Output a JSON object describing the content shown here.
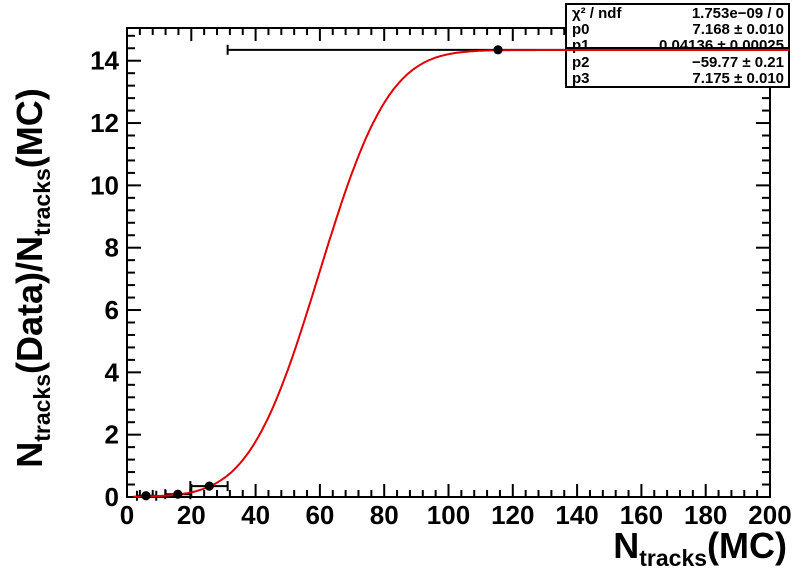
{
  "chart_data": {
    "type": "scatter",
    "title": "",
    "xlabel": "N_tracks(MC)",
    "ylabel": "N_tracks(Data)/N_tracks(MC)",
    "xlabel_segments": [
      {
        "text": "N",
        "sub": false
      },
      {
        "text": "tracks",
        "sub": true
      },
      {
        "text": "(MC)",
        "sub": false
      }
    ],
    "ylabel_segments": [
      {
        "text": "N",
        "sub": false
      },
      {
        "text": "tracks",
        "sub": true
      },
      {
        "text": "(Data)/N",
        "sub": false
      },
      {
        "text": "tracks",
        "sub": true
      },
      {
        "text": "(MC)",
        "sub": false
      }
    ],
    "xlim": [
      0,
      200
    ],
    "ylim": [
      0,
      15.05
    ],
    "x_major_ticks": [
      0,
      20,
      40,
      60,
      80,
      100,
      120,
      140,
      160,
      180,
      200
    ],
    "x_minor_step": 4,
    "y_major_ticks": [
      0,
      2,
      4,
      6,
      8,
      10,
      12,
      14
    ],
    "y_minor_step": 0.4,
    "grid": false,
    "legend": "none",
    "points": [
      {
        "x": 5.9,
        "y": 0.04,
        "xlow": 3.1,
        "xhigh": 9.1
      },
      {
        "x": 15.8,
        "y": 0.09,
        "xlow": 11.9,
        "xhigh": 19.7
      },
      {
        "x": 25.6,
        "y": 0.35,
        "xlow": 19.7,
        "xhigh": 31.3
      },
      {
        "x": 115.4,
        "y": 14.35,
        "xlow": 31.3,
        "xhigh": 200
      }
    ],
    "fit": {
      "model": "y = p3 + p0*erf(p1*(x+p2))",
      "params": {
        "p0": 7.168,
        "p1": 0.04136,
        "p2": -59.77,
        "p3": 7.175
      },
      "range": [
        2,
        206
      ],
      "color": "#e10000"
    },
    "marker_color": "#000000"
  },
  "stats_box": {
    "rows": [
      {
        "label": "χ² / ndf",
        "value": "1.753e−09 / 0"
      },
      {
        "label": "p0",
        "value": "7.168 ± 0.010"
      },
      {
        "label": "p1",
        "value": "0.04136 ± 0.00025"
      },
      {
        "label": "p2",
        "value": "−59.77 ± 0.21"
      },
      {
        "label": "p3",
        "value": "7.175 ± 0.010"
      }
    ]
  },
  "colors": {
    "fit_line": "#e10000",
    "marker": "#000000",
    "frame": "#000000",
    "background": "#ffffff"
  }
}
